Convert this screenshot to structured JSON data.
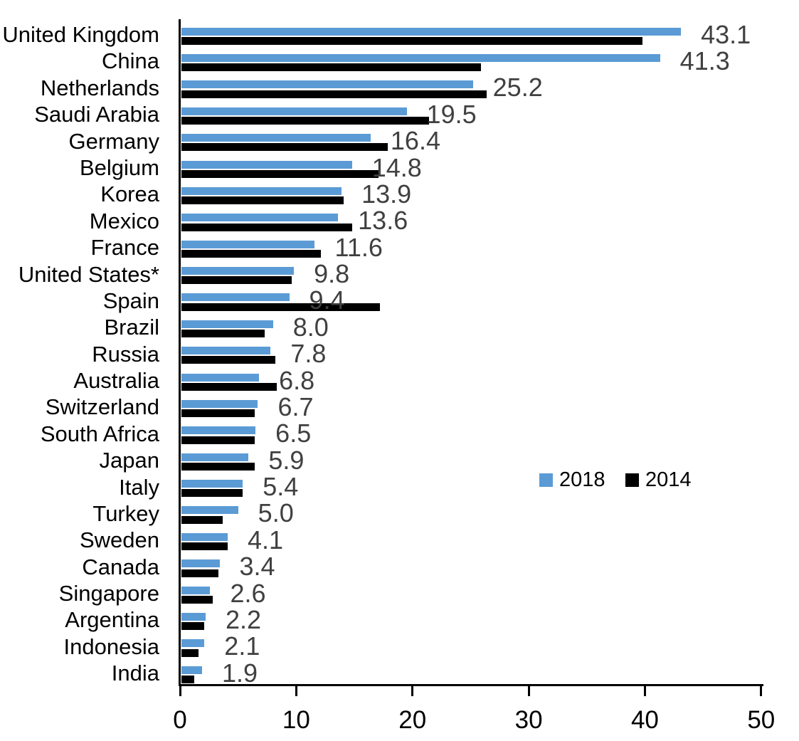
{
  "chart_data": {
    "type": "bar",
    "orientation": "horizontal",
    "grouped": true,
    "title": "",
    "xlabel": "",
    "ylabel": "",
    "xlim": [
      0,
      50
    ],
    "x_ticks": [
      0,
      10,
      20,
      30,
      40,
      50
    ],
    "grid": false,
    "legend_position": "middle-right",
    "categories": [
      "United Kingdom",
      "China",
      "Netherlands",
      "Saudi Arabia",
      "Germany",
      "Belgium",
      "Korea",
      "Mexico",
      "France",
      "United States*",
      "Spain",
      "Brazil",
      "Russia",
      "Australia",
      "Switzerland",
      "South Africa",
      "Japan",
      "Italy",
      "Turkey",
      "Sweden",
      "Canada",
      "Singapore",
      "Argentina",
      "Indonesia",
      "India"
    ],
    "series": [
      {
        "name": "2018",
        "color": "#5B9BD5",
        "values": [
          43.1,
          41.3,
          25.2,
          19.5,
          16.4,
          14.8,
          13.9,
          13.6,
          11.6,
          9.8,
          9.4,
          8.0,
          7.8,
          6.8,
          6.7,
          6.5,
          5.9,
          5.4,
          5.0,
          4.1,
          3.4,
          2.6,
          2.2,
          2.1,
          1.9
        ],
        "data_labels": [
          "43.1",
          "41.3",
          "25.2",
          "19.5",
          "16.4",
          "14.8",
          "13.9",
          "13.6",
          "11.6",
          "9.8",
          "9.4",
          "8.0",
          "7.8",
          "6.8",
          "6.7",
          "6.5",
          "5.9",
          "5.4",
          "5.0",
          "4.1",
          "3.4",
          "2.6",
          "2.2",
          "2.1",
          "1.9"
        ]
      },
      {
        "name": "2014",
        "color": "#000000",
        "values": [
          39.8,
          25.9,
          26.4,
          21.4,
          17.9,
          17.1,
          14.1,
          14.8,
          12.1,
          9.6,
          17.2,
          7.3,
          8.2,
          8.3,
          6.4,
          6.4,
          6.4,
          5.4,
          3.7,
          4.1,
          3.3,
          2.8,
          2.1,
          1.6,
          1.2
        ],
        "data_labels": []
      }
    ],
    "colors": {
      "series_2018": "#5B9BD5",
      "series_2014": "#000000",
      "value_label_text": "#404040",
      "axis_and_text": "#000000",
      "background": "#FFFFFF"
    }
  }
}
